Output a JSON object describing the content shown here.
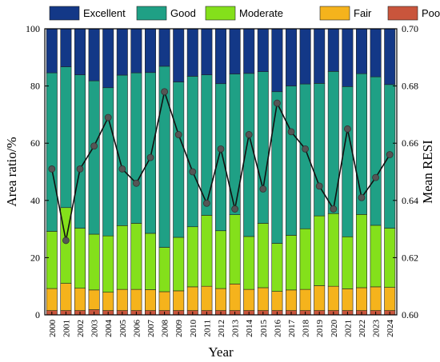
{
  "chart_data": {
    "type": "bar",
    "stacked": true,
    "categories": [
      "2000",
      "2001",
      "2002",
      "2003",
      "2004",
      "2005",
      "2006",
      "2007",
      "2008",
      "2009",
      "2010",
      "2011",
      "2012",
      "2013",
      "2014",
      "2015",
      "2016",
      "2017",
      "2018",
      "2019",
      "2020",
      "2021",
      "2022",
      "2023",
      "2024"
    ],
    "series": [
      {
        "name": "Poor",
        "color": "#c9553c",
        "values": [
          1.5,
          1.5,
          1.5,
          1.8,
          1.5,
          1.5,
          1.5,
          1.5,
          1.5,
          1.5,
          1.5,
          1.5,
          1.5,
          1.5,
          1.5,
          1.5,
          1.5,
          1.5,
          1.5,
          1.5,
          1.5,
          1.5,
          1.5,
          1.5,
          1.5
        ]
      },
      {
        "name": "Fair",
        "color": "#f5b31c",
        "values": [
          7.7,
          9.5,
          7.8,
          6.9,
          6.4,
          7.4,
          7.4,
          7.3,
          6.6,
          6.9,
          8.3,
          8.5,
          7.7,
          9.3,
          7.4,
          8.0,
          6.7,
          7.2,
          7.4,
          8.7,
          8.5,
          7.6,
          8.0,
          8.3,
          8.1
        ]
      },
      {
        "name": "Moderate",
        "color": "#84e01b",
        "values": [
          20.0,
          26.5,
          21.0,
          19.5,
          19.7,
          22.3,
          23.1,
          19.7,
          15.5,
          18.7,
          21.0,
          24.8,
          20.2,
          24.2,
          18.5,
          22.5,
          16.8,
          19.1,
          21.2,
          24.4,
          25.4,
          18.2,
          25.6,
          21.5,
          20.7
        ]
      },
      {
        "name": "Good",
        "color": "#1fa085",
        "values": [
          55.4,
          49.2,
          53.6,
          53.6,
          51.8,
          52.6,
          52.6,
          56.2,
          63.3,
          54.3,
          52.6,
          49.1,
          51.4,
          49.2,
          57.0,
          53.0,
          53.0,
          52.2,
          50.6,
          46.3,
          49.7,
          52.5,
          49.2,
          51.9,
          50.2
        ]
      },
      {
        "name": "Excellent",
        "color": "#133887",
        "values": [
          15.4,
          13.3,
          16.1,
          18.2,
          20.6,
          16.2,
          15.4,
          15.3,
          13.1,
          18.6,
          16.6,
          16.1,
          19.2,
          15.8,
          15.6,
          15.0,
          22.0,
          20.0,
          19.3,
          19.1,
          14.9,
          20.2,
          15.7,
          16.8,
          19.5
        ]
      }
    ],
    "line": {
      "axis": "right",
      "values": [
        0.651,
        0.626,
        0.651,
        0.659,
        0.669,
        0.651,
        0.646,
        0.655,
        0.678,
        0.663,
        0.65,
        0.639,
        0.658,
        0.637,
        0.663,
        0.644,
        0.674,
        0.664,
        0.658,
        0.645,
        0.637,
        0.665,
        0.641,
        0.648,
        0.656
      ]
    },
    "xlabel": "Year",
    "ylabel": "Area ratio/%",
    "ylabel_right": "Mean RESI",
    "ylim": [
      0,
      100
    ],
    "ylim_right": [
      0.6,
      0.7
    ],
    "yticks": [
      0,
      20,
      40,
      60,
      80,
      100
    ],
    "yticks_right": [
      "0.60",
      "0.62",
      "0.64",
      "0.66",
      "0.68",
      "0.70"
    ],
    "legend": {
      "position": "top",
      "order": [
        "Excellent",
        "Good",
        "Moderate",
        "Fair",
        "Poor"
      ]
    },
    "grid": false
  }
}
